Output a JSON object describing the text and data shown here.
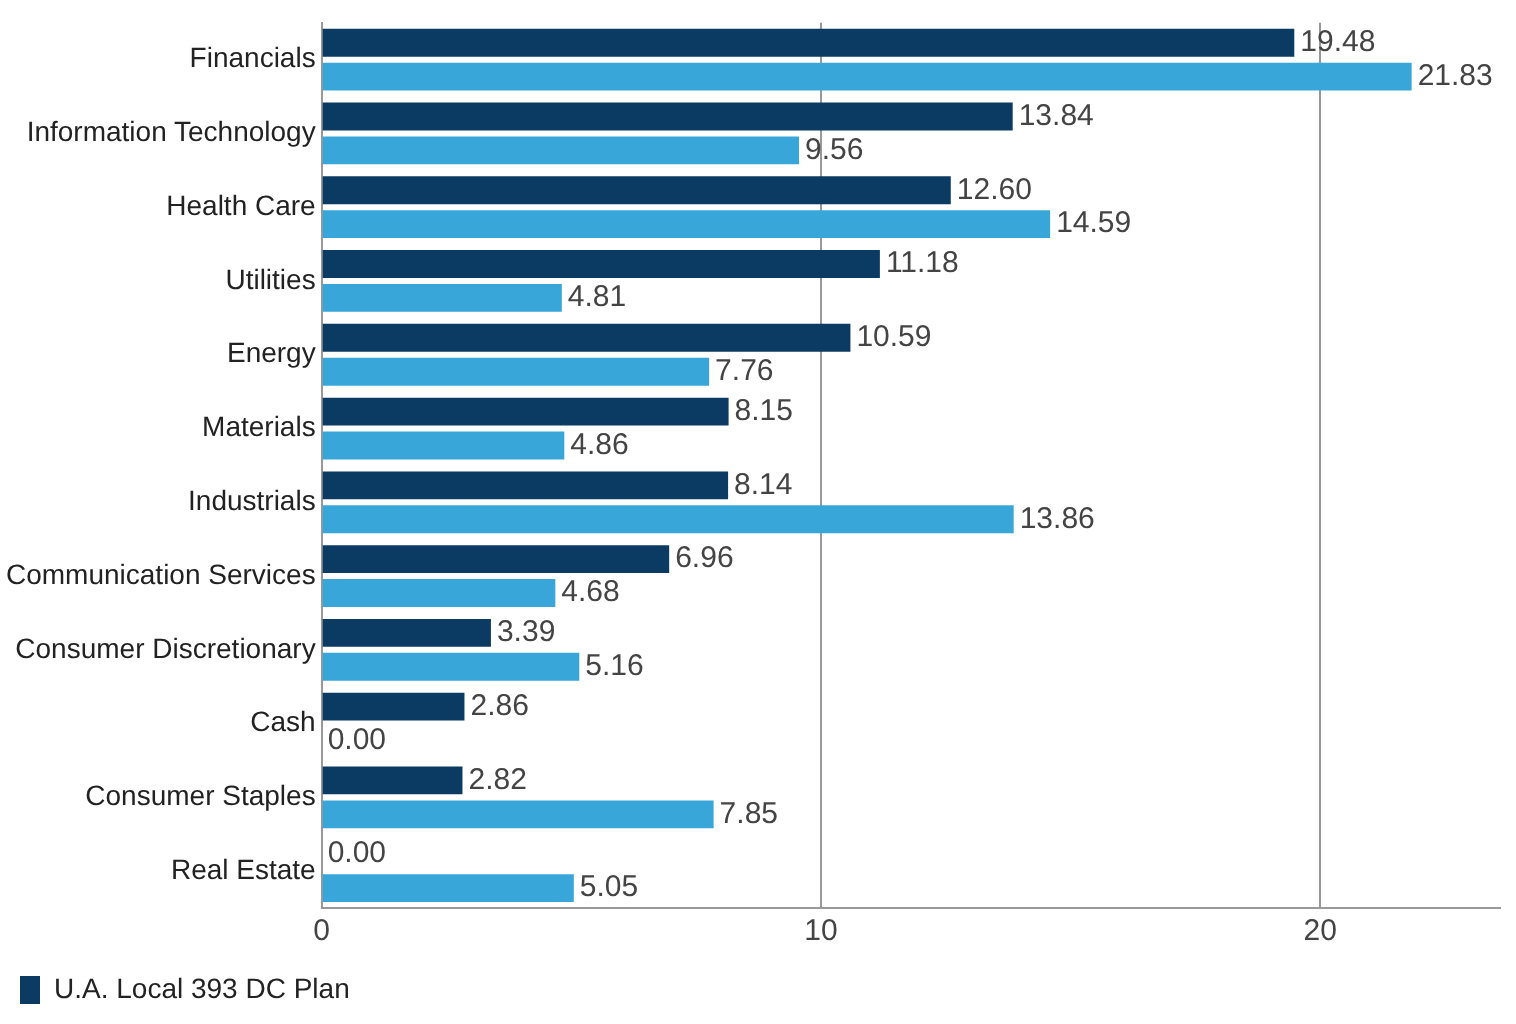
{
  "chart_data": {
    "type": "bar",
    "orientation": "horizontal",
    "categories": [
      "Financials",
      "Information Technology",
      "Health Care",
      "Utilities",
      "Energy",
      "Materials",
      "Industrials",
      "Communication Services",
      "Consumer Discretionary",
      "Cash",
      "Consumer Staples",
      "Real Estate"
    ],
    "series": [
      {
        "name": "U.A. Local 393 DC Plan",
        "color": "#0b3a63",
        "values": [
          19.48,
          13.84,
          12.6,
          11.18,
          10.59,
          8.15,
          8.14,
          6.96,
          3.39,
          2.86,
          2.82,
          0
        ],
        "value_labels": [
          "19.48",
          "13.84",
          "12.60",
          "11.18",
          "10.59",
          "8.15",
          "8.14",
          "6.96",
          "3.39",
          "2.86",
          "2.82",
          "0.00"
        ]
      },
      {
        "color": "#38a6d9",
        "values": [
          21.83,
          9.56,
          14.59,
          4.81,
          7.76,
          4.86,
          13.86,
          4.68,
          5.16,
          0,
          7.85,
          5.05
        ],
        "value_labels": [
          "21.83",
          "9.56",
          "14.59",
          "4.81",
          "7.76",
          "4.86",
          "13.86",
          "4.68",
          "5.16",
          "0.00",
          "7.85",
          "5.05"
        ]
      }
    ],
    "xlim": [
      0,
      23.6
    ],
    "xticks": [
      0,
      10,
      20
    ],
    "grid": "x",
    "legend": "bottom"
  }
}
